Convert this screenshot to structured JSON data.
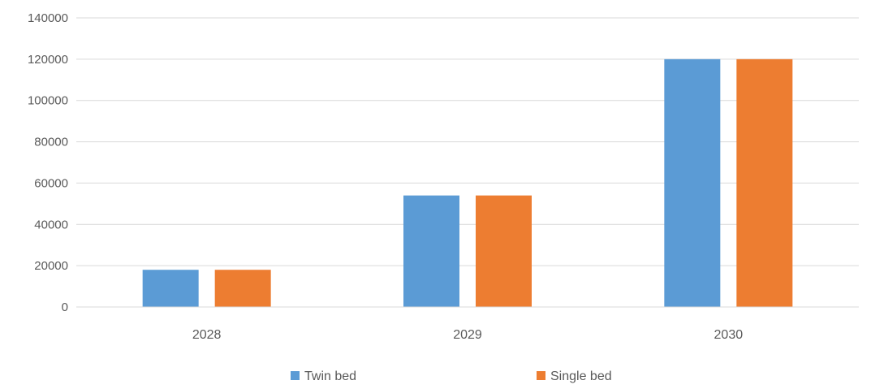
{
  "chart_data": {
    "type": "bar",
    "title": "",
    "xlabel": "",
    "ylabel": "",
    "categories": [
      "2028",
      "2029",
      "2030"
    ],
    "series": [
      {
        "name": "Twin bed",
        "values": [
          18000,
          54000,
          120000
        ],
        "color": "#5B9BD5"
      },
      {
        "name": "Single bed",
        "values": [
          18000,
          54000,
          120000
        ],
        "color": "#ED7D31"
      }
    ],
    "ylim": [
      0,
      140000
    ],
    "yticks": [
      0,
      20000,
      40000,
      60000,
      80000,
      100000,
      120000,
      140000
    ],
    "grid": true,
    "legend_position": "bottom",
    "gridline_color": "#D9D9D9"
  }
}
